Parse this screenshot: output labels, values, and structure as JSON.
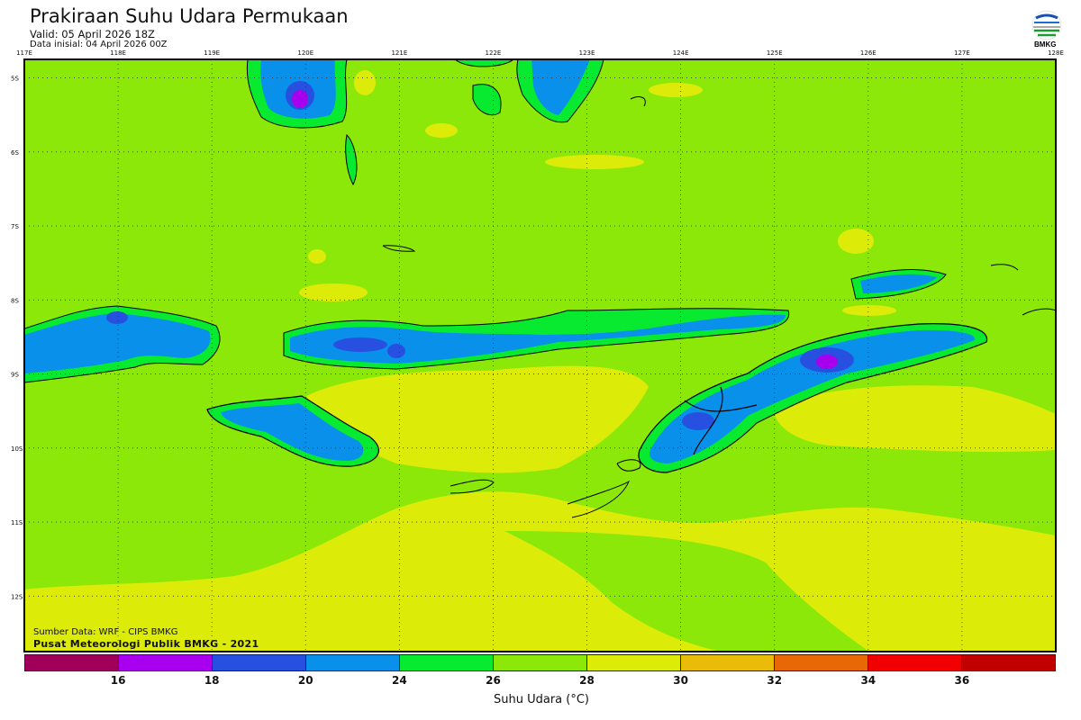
{
  "header": {
    "title": "Prakiraan Suhu Udara Permukaan",
    "valid": "Valid: 05 April 2026 18Z",
    "initial": "Data inisial: 04 April 2026 00Z",
    "logo_text": "BMKG"
  },
  "map": {
    "lon_labels": [
      "117E",
      "118E",
      "119E",
      "120E",
      "121E",
      "122E",
      "123E",
      "124E",
      "125E",
      "126E",
      "127E",
      "128E"
    ],
    "lat_labels": [
      "5S",
      "6S",
      "7S",
      "8S",
      "9S",
      "10S",
      "11S",
      "12S"
    ],
    "lon_range": [
      117,
      128
    ],
    "lat_range_south": [
      4.75,
      12.75
    ],
    "gridlines": "dotted, every 1 degree",
    "credit_source": "Sumber Data: WRF - CIPS BMKG",
    "credit_org": "Pusat Meteorologi Publik BMKG - 2021"
  },
  "legend": {
    "title": "Suhu Udara (°C)",
    "ticks": [
      "16",
      "18",
      "20",
      "24",
      "26",
      "28",
      "30",
      "32",
      "34",
      "36"
    ],
    "colors": [
      "#a0005a",
      "#a800ee",
      "#2850e0",
      "#0890ea",
      "#08ea30",
      "#8ce808",
      "#dcec08",
      "#e8bc08",
      "#e86808",
      "#f00000",
      "#c00000"
    ]
  }
}
